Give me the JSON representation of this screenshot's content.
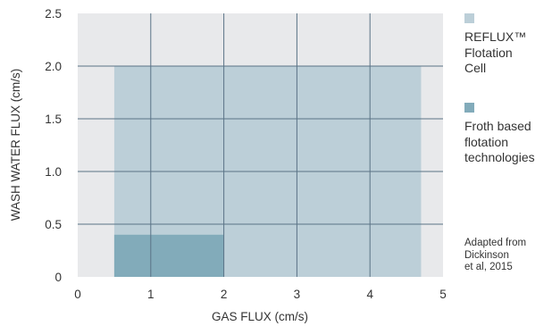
{
  "chart_data": {
    "type": "area",
    "title": "",
    "xlabel": "GAS FLUX (cm/s)",
    "ylabel": "WASH WATER FLUX (cm/s)",
    "xlim": [
      0,
      5
    ],
    "ylim": [
      0,
      2.5
    ],
    "x_ticks": [
      "0",
      "1",
      "2",
      "3",
      "4",
      "5"
    ],
    "x_tick_values": [
      0,
      1,
      2,
      3,
      4,
      5
    ],
    "y_ticks": [
      "0",
      "0.5",
      "1.0",
      "1.5",
      "2.0",
      "2.5"
    ],
    "y_tick_values": [
      0,
      0.5,
      1.0,
      1.5,
      2.0,
      2.5
    ],
    "grid": true,
    "legend_position": "right",
    "series": [
      {
        "name": "REFLUX™ Flotation Cell",
        "legend_lines": [
          "REFLUX™",
          "Flotation",
          "Cell"
        ],
        "x_range": [
          0.5,
          4.7
        ],
        "y_range": [
          0,
          2.0
        ],
        "color": "#bccfd8"
      },
      {
        "name": "Froth based flotation technologies",
        "legend_lines": [
          "Froth based",
          "flotation",
          "technologies"
        ],
        "x_range": [
          0.5,
          2.0
        ],
        "y_range": [
          0,
          0.4
        ],
        "color": "#82abba"
      }
    ],
    "annotation": [
      "Adapted from",
      "Dickinson",
      "et al, 2015"
    ],
    "colors": {
      "plot_background": "#e8e9eb",
      "grid": "#5a7386",
      "text": "#333333"
    }
  }
}
